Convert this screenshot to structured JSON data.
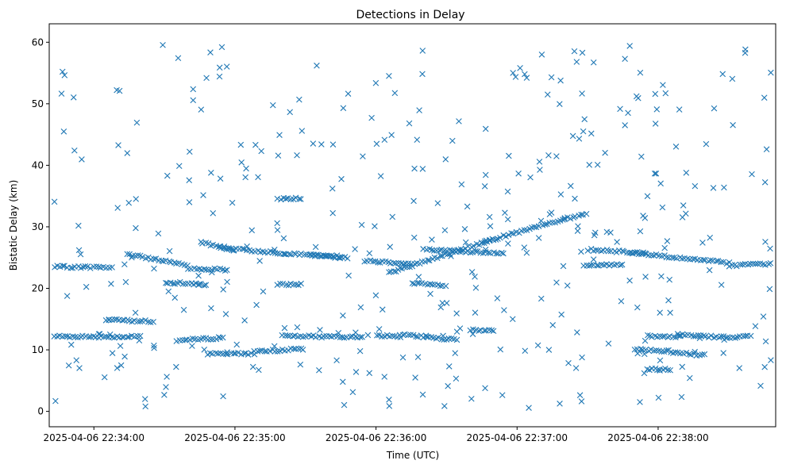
{
  "chart_data": {
    "type": "scatter",
    "title": "Detections in Delay",
    "xlabel": "Time (UTC)",
    "ylabel": "Bistatic Delay (km)",
    "xlim": [
      "2025-04-06 22:33:41",
      "2025-04-06 22:38:50"
    ],
    "ylim": [
      -2.5,
      63
    ],
    "x_ticks": [
      "2025-04-06 22:34:00",
      "2025-04-06 22:35:00",
      "2025-04-06 22:36:00",
      "2025-04-06 22:37:00",
      "2025-04-06 22:38:00"
    ],
    "y_ticks": [
      0,
      10,
      20,
      30,
      40,
      50,
      60
    ],
    "grid": false,
    "marker": "x",
    "color": "#1f77b4",
    "tracks": [
      {
        "start": "2025-04-06 22:33:43",
        "end": "2025-04-06 22:34:08",
        "y_start": 23.5,
        "y_end": 23.4
      },
      {
        "start": "2025-04-06 22:33:43",
        "end": "2025-04-06 22:34:20",
        "y_start": 12.2,
        "y_end": 12.1
      },
      {
        "start": "2025-04-06 22:34:05",
        "end": "2025-04-06 22:34:25",
        "y_start": 14.9,
        "y_end": 14.6
      },
      {
        "start": "2025-04-06 22:34:14",
        "end": "2025-04-06 22:34:40",
        "y_start": 25.5,
        "y_end": 23.8
      },
      {
        "start": "2025-04-06 22:34:30",
        "end": "2025-04-06 22:34:48",
        "y_start": 21.0,
        "y_end": 20.6
      },
      {
        "start": "2025-04-06 22:34:35",
        "end": "2025-04-06 22:34:55",
        "y_start": 11.5,
        "y_end": 12.0
      },
      {
        "start": "2025-04-06 22:34:40",
        "end": "2025-04-06 22:34:57",
        "y_start": 23.2,
        "y_end": 23.0
      },
      {
        "start": "2025-04-06 22:34:45",
        "end": "2025-04-06 22:35:00",
        "y_start": 27.5,
        "y_end": 26.2
      },
      {
        "start": "2025-04-06 22:34:48",
        "end": "2025-04-06 22:35:08",
        "y_start": 9.3,
        "y_end": 9.4
      },
      {
        "start": "2025-04-06 22:34:55",
        "end": "2025-04-06 22:35:45",
        "y_start": 26.5,
        "y_end": 25.0
      },
      {
        "start": "2025-04-06 22:35:08",
        "end": "2025-04-06 22:35:30",
        "y_start": 9.7,
        "y_end": 10.2
      },
      {
        "start": "2025-04-06 22:35:18",
        "end": "2025-04-06 22:35:28",
        "y_start": 20.6,
        "y_end": 20.6
      },
      {
        "start": "2025-04-06 22:35:18",
        "end": "2025-04-06 22:35:28",
        "y_start": 34.6,
        "y_end": 34.6
      },
      {
        "start": "2025-04-06 22:35:20",
        "end": "2025-04-06 22:35:55",
        "y_start": 12.3,
        "y_end": 12.0
      },
      {
        "start": "2025-04-06 22:35:32",
        "end": "2025-04-06 22:35:48",
        "y_start": 25.6,
        "y_end": 25.0
      },
      {
        "start": "2025-04-06 22:35:55",
        "end": "2025-04-06 22:36:15",
        "y_start": 24.5,
        "y_end": 24.0
      },
      {
        "start": "2025-04-06 22:36:00",
        "end": "2025-04-06 22:36:10",
        "y_start": 12.3,
        "y_end": 12.2
      },
      {
        "start": "2025-04-06 22:36:05",
        "end": "2025-04-06 22:36:50",
        "y_start": 22.5,
        "y_end": 28.0
      },
      {
        "start": "2025-04-06 22:36:10",
        "end": "2025-04-06 22:36:35",
        "y_start": 12.5,
        "y_end": 11.6
      },
      {
        "start": "2025-04-06 22:36:15",
        "end": "2025-04-06 22:36:30",
        "y_start": 20.8,
        "y_end": 20.4
      },
      {
        "start": "2025-04-06 22:36:20",
        "end": "2025-04-06 22:36:55",
        "y_start": 26.3,
        "y_end": 25.6
      },
      {
        "start": "2025-04-06 22:36:40",
        "end": "2025-04-06 22:36:50",
        "y_start": 13.2,
        "y_end": 13.2
      },
      {
        "start": "2025-04-06 22:36:45",
        "end": "2025-04-06 22:37:30",
        "y_start": 27.5,
        "y_end": 32.3
      },
      {
        "start": "2025-04-06 22:37:30",
        "end": "2025-04-06 22:37:55",
        "y_start": 26.3,
        "y_end": 25.7
      },
      {
        "start": "2025-04-06 22:37:28",
        "end": "2025-04-06 22:37:45",
        "y_start": 23.8,
        "y_end": 23.8
      },
      {
        "start": "2025-04-06 22:37:48",
        "end": "2025-04-06 22:38:30",
        "y_start": 25.8,
        "y_end": 24.1
      },
      {
        "start": "2025-04-06 22:37:50",
        "end": "2025-04-06 22:38:05",
        "y_start": 10.1,
        "y_end": 9.8
      },
      {
        "start": "2025-04-06 22:37:55",
        "end": "2025-04-06 22:38:10",
        "y_start": 12.2,
        "y_end": 12.1
      },
      {
        "start": "2025-04-06 22:37:55",
        "end": "2025-04-06 22:38:05",
        "y_start": 6.8,
        "y_end": 6.8
      },
      {
        "start": "2025-04-06 22:38:05",
        "end": "2025-04-06 22:38:20",
        "y_start": 9.6,
        "y_end": 9.1
      },
      {
        "start": "2025-04-06 22:38:08",
        "end": "2025-04-06 22:38:30",
        "y_start": 12.5,
        "y_end": 12.0
      },
      {
        "start": "2025-04-06 22:38:30",
        "end": "2025-04-06 22:38:48",
        "y_start": 23.7,
        "y_end": 24.0
      },
      {
        "start": "2025-04-06 22:38:28",
        "end": "2025-04-06 22:38:40",
        "y_start": 11.8,
        "y_end": 12.3
      }
    ],
    "noise": {
      "count": 380,
      "x_range": [
        "2025-04-06 22:33:43",
        "2025-04-06 22:38:48"
      ],
      "y_range": [
        0.5,
        60
      ]
    }
  }
}
